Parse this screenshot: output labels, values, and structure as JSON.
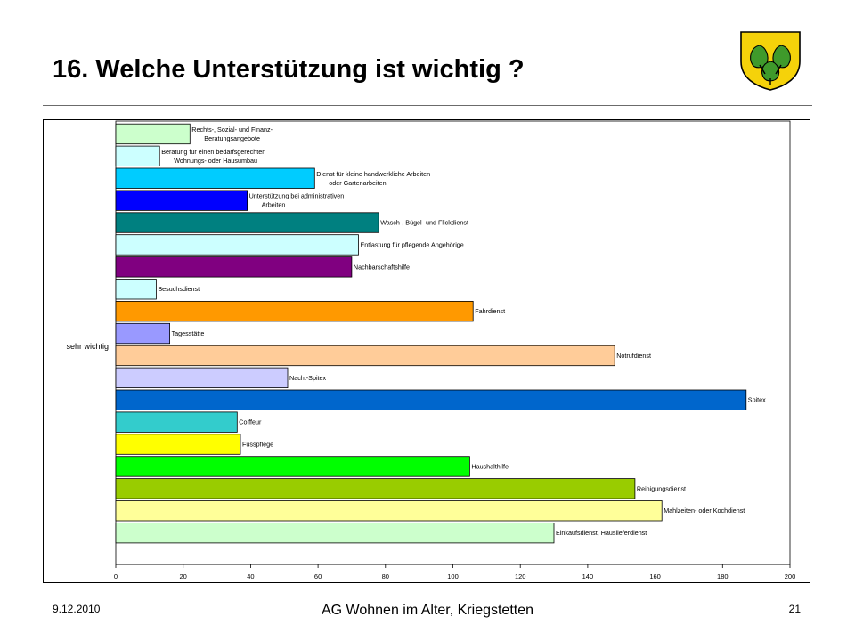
{
  "slide": {
    "title": "16. Welche Unterstützung ist wichtig ?",
    "footer_date": "9.12.2010",
    "footer_center": "AG Wohnen im Alter, Kriegstetten",
    "page_number": "21"
  },
  "logo": {
    "icon": "coat-of-arms-linden-leaves-icon",
    "colors": {
      "field": "#f5d20a",
      "leaf": "#3f9a2b"
    }
  },
  "chart_data": {
    "type": "bar",
    "orientation": "horizontal",
    "category_axis_label": "sehr wichtig",
    "xlim": [
      0,
      200
    ],
    "x_ticks": [
      0,
      20,
      40,
      60,
      80,
      100,
      120,
      140,
      160,
      180,
      200
    ],
    "grid": false,
    "bars": [
      {
        "label": [
          "Rechts-, Sozial- und Finanz-",
          "Beratungsangebote"
        ],
        "value": 22,
        "color": "#ccffcc"
      },
      {
        "label": [
          "Beratung für einen bedarfsgerechten",
          "Wohnungs- oder Hausumbau"
        ],
        "value": 13,
        "color": "#ccffff"
      },
      {
        "label": [
          "Dienst für kleine handwerkliche Arbeiten",
          "oder Gartenarbeiten"
        ],
        "value": 59,
        "color": "#00ccff"
      },
      {
        "label": [
          "Unterstützung bei administrativen",
          "Arbeiten"
        ],
        "value": 39,
        "color": "#0000ff"
      },
      {
        "label": [
          "Wasch-, Bügel- und Flickdienst"
        ],
        "value": 78,
        "color": "#008080"
      },
      {
        "label": [
          "Entlastung für pflegende Angehörige"
        ],
        "value": 72,
        "color": "#ccffff"
      },
      {
        "label": [
          "Nachbarschaftshilfe"
        ],
        "value": 70,
        "color": "#800080"
      },
      {
        "label": [
          "Besuchsdienst"
        ],
        "value": 12,
        "color": "#ccffff"
      },
      {
        "label": [
          "Fahrdienst"
        ],
        "value": 106,
        "color": "#ff9900"
      },
      {
        "label": [
          "Tagesstätte"
        ],
        "value": 16,
        "color": "#9999ff"
      },
      {
        "label": [
          "Notrufdienst"
        ],
        "value": 148,
        "color": "#ffcc99"
      },
      {
        "label": [
          "Nacht-Spitex"
        ],
        "value": 51,
        "color": "#ccccff"
      },
      {
        "label": [
          "Spitex"
        ],
        "value": 187,
        "color": "#0066cc"
      },
      {
        "label": [
          "Coiffeur"
        ],
        "value": 36,
        "color": "#33cccc"
      },
      {
        "label": [
          "Fusspflege"
        ],
        "value": 37,
        "color": "#ffff00"
      },
      {
        "label": [
          "Haushalthilfe"
        ],
        "value": 105,
        "color": "#00ff00"
      },
      {
        "label": [
          "Reinigungsdienst"
        ],
        "value": 154,
        "color": "#99cc00"
      },
      {
        "label": [
          "Mahlzeiten- oder Kochdienst"
        ],
        "value": 162,
        "color": "#ffff99"
      },
      {
        "label": [
          "Einkaufsdienst, Hauslieferdienst"
        ],
        "value": 130,
        "color": "#ccffcc"
      }
    ]
  }
}
